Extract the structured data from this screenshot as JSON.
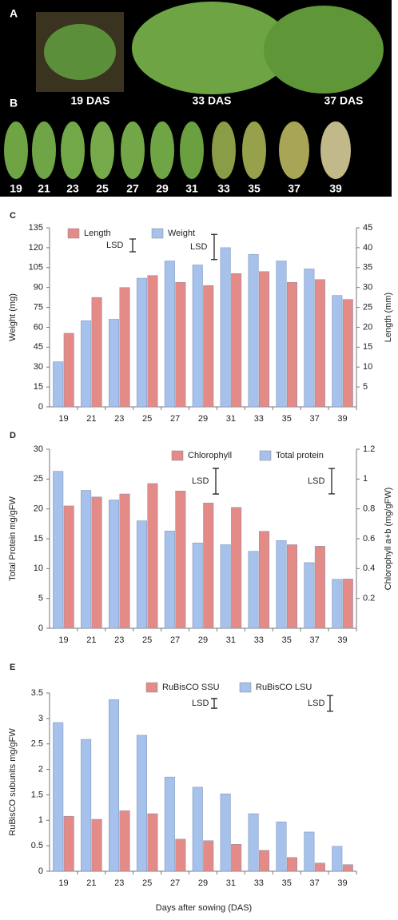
{
  "photos": {
    "panel_a": "A",
    "panel_b": "B",
    "plant_labels": [
      "19 DAS",
      "33 DAS",
      "37 DAS"
    ],
    "leaf_labels": [
      "19",
      "21",
      "23",
      "25",
      "27",
      "29",
      "31",
      "33",
      "35",
      "37",
      "39"
    ]
  },
  "chart_data": [
    {
      "type": "bar",
      "panel": "C",
      "ylabel": "Weight (mg)",
      "y2label": "Length (mm)",
      "categories": [
        "19",
        "21",
        "23",
        "25",
        "27",
        "29",
        "31",
        "33",
        "35",
        "37",
        "39"
      ],
      "series": [
        {
          "name": "Length",
          "color": "#e48b88",
          "axis": "y2",
          "values": [
            18.5,
            27.5,
            30,
            33,
            31.3,
            30.5,
            33.5,
            34,
            31.3,
            32,
            27
          ]
        },
        {
          "name": "Weight",
          "color": "#a6c1ec",
          "values": [
            34,
            65,
            66,
            97,
            110,
            107,
            120,
            115,
            110,
            104,
            84
          ]
        }
      ],
      "annotations": [
        {
          "text": "LSD",
          "value": 3.2,
          "axis": "y2"
        },
        {
          "text": "LSD",
          "value": 19
        }
      ],
      "ylim": [
        0,
        135
      ],
      "yticks": [
        0,
        15,
        30,
        45,
        60,
        75,
        90,
        105,
        120,
        135
      ],
      "y2lim": [
        0,
        45
      ],
      "y2ticks": [
        5,
        10,
        15,
        20,
        25,
        30,
        35,
        40,
        45
      ]
    },
    {
      "type": "bar",
      "panel": "D",
      "ylabel": "Total Protein mg/gFW",
      "y2label": "Chlorophyll a+b (mg/gFW)",
      "categories": [
        "19",
        "21",
        "23",
        "25",
        "27",
        "29",
        "31",
        "33",
        "35",
        "37",
        "39"
      ],
      "series": [
        {
          "name": "Chlorophyll",
          "color": "#e48b88",
          "axis": "y2",
          "values": [
            0.82,
            0.88,
            0.9,
            0.97,
            0.92,
            0.84,
            0.81,
            0.65,
            0.56,
            0.55,
            0.33
          ]
        },
        {
          "name": "Total protein",
          "color": "#a6c1ec",
          "values": [
            26.3,
            23.1,
            21.5,
            18,
            16.3,
            14.3,
            14,
            12.9,
            14.7,
            11,
            8.2
          ]
        }
      ],
      "annotations": [
        {
          "text": "LSD",
          "value": 4.3
        },
        {
          "text": "LSD",
          "value": 0.17,
          "axis": "y2"
        }
      ],
      "ylim": [
        0,
        30
      ],
      "yticks": [
        0,
        5,
        10,
        15,
        20,
        25,
        30
      ],
      "y2lim": [
        0,
        1.2
      ],
      "y2ticks": [
        0.2,
        0.4,
        0.6,
        0.8,
        1.0,
        1.2
      ]
    },
    {
      "type": "bar",
      "panel": "E",
      "ylabel": "RuBisCO subunits mg/gFW",
      "xlabel": "Days after sowing (DAS)",
      "categories": [
        "19",
        "21",
        "23",
        "25",
        "27",
        "29",
        "31",
        "33",
        "35",
        "37",
        "39"
      ],
      "series": [
        {
          "name": "RuBisCO SSU",
          "color": "#e48b88",
          "values": [
            1.08,
            1.02,
            1.19,
            1.13,
            0.63,
            0.6,
            0.53,
            0.41,
            0.27,
            0.16,
            0.13
          ]
        },
        {
          "name": "RuBisCO LSU",
          "color": "#a6c1ec",
          "values": [
            2.92,
            2.59,
            3.37,
            2.67,
            1.85,
            1.65,
            1.52,
            1.13,
            0.97,
            0.77,
            0.49
          ]
        }
      ],
      "annotations": [
        {
          "text": "LSD",
          "value": 0.19
        },
        {
          "text": "LSD",
          "value": 0.31
        }
      ],
      "ylim": [
        0,
        3.5
      ],
      "yticks": [
        0,
        0.5,
        1,
        1.5,
        2,
        2.5,
        3,
        3.5
      ]
    }
  ]
}
